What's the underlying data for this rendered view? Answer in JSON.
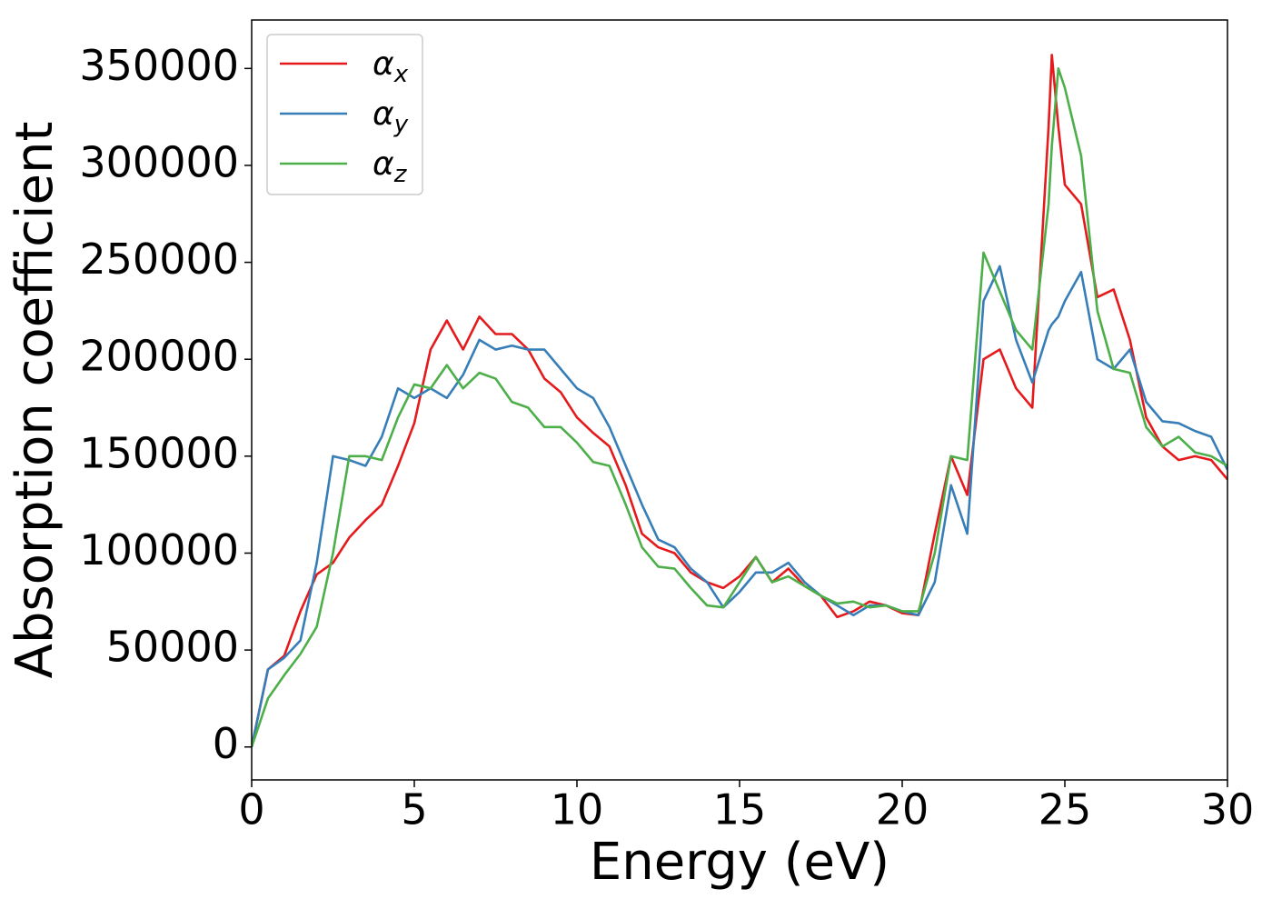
{
  "chart_data": {
    "type": "line",
    "xlabel": "Energy (eV)",
    "ylabel": "Absorption coefficient",
    "x": [
      0,
      0.5,
      1,
      1.5,
      2,
      2.5,
      3,
      3.5,
      4,
      4.5,
      5,
      5.5,
      6,
      6.5,
      7,
      7.5,
      8,
      8.5,
      9,
      9.5,
      10,
      10.5,
      11,
      11.5,
      12,
      12.5,
      13,
      13.5,
      14,
      14.5,
      15,
      15.5,
      16,
      16.5,
      17,
      17.5,
      18,
      18.5,
      19,
      19.5,
      20,
      20.5,
      21,
      21.5,
      22,
      22.5,
      23,
      23.5,
      24,
      24.5,
      24.6,
      24.8,
      25,
      25.5,
      26,
      26.5,
      27,
      27.5,
      28,
      28.5,
      29,
      29.5,
      30
    ],
    "series": [
      {
        "name": "αx",
        "color": "#e41a1c",
        "values": [
          0,
          40000,
          47000,
          70000,
          89000,
          95000,
          108000,
          117000,
          125000,
          145000,
          167000,
          205000,
          220000,
          205000,
          222000,
          213000,
          213000,
          205000,
          190000,
          183000,
          170000,
          162000,
          155000,
          135000,
          110000,
          103000,
          100000,
          90000,
          85000,
          82000,
          88000,
          98000,
          85000,
          92000,
          83000,
          78000,
          67000,
          70000,
          75000,
          73000,
          69000,
          68000,
          110000,
          150000,
          130000,
          200000,
          205000,
          185000,
          175000,
          320000,
          357000,
          320000,
          290000,
          280000,
          232000,
          236000,
          210000,
          170000,
          155000,
          148000,
          150000,
          148000,
          138000
        ]
      },
      {
        "name": "αy",
        "color": "#377eb8",
        "values": [
          0,
          40000,
          46000,
          55000,
          95000,
          150000,
          148000,
          145000,
          160000,
          185000,
          180000,
          185000,
          180000,
          192000,
          210000,
          205000,
          207000,
          205000,
          205000,
          195000,
          185000,
          180000,
          165000,
          145000,
          125000,
          107000,
          103000,
          92000,
          85000,
          72000,
          80000,
          90000,
          90000,
          95000,
          85000,
          78000,
          73000,
          68000,
          73000,
          73000,
          70000,
          68000,
          85000,
          135000,
          110000,
          230000,
          248000,
          210000,
          188000,
          215000,
          218000,
          222000,
          230000,
          245000,
          200000,
          195000,
          205000,
          178000,
          168000,
          167000,
          163000,
          160000,
          143000
        ]
      },
      {
        "name": "αz",
        "color": "#4daf4a",
        "values": [
          0,
          25000,
          37000,
          48000,
          62000,
          100000,
          150000,
          150000,
          148000,
          170000,
          187000,
          185000,
          197000,
          185000,
          193000,
          190000,
          178000,
          175000,
          165000,
          165000,
          157000,
          147000,
          145000,
          125000,
          103000,
          93000,
          92000,
          82000,
          73000,
          72000,
          85000,
          98000,
          85000,
          88000,
          83000,
          78000,
          74000,
          75000,
          72000,
          73000,
          70000,
          70000,
          100000,
          150000,
          148000,
          255000,
          235000,
          215000,
          205000,
          280000,
          310000,
          350000,
          340000,
          305000,
          225000,
          195000,
          193000,
          165000,
          155000,
          160000,
          152000,
          150000,
          145000
        ]
      }
    ],
    "xlim": [
      0,
      30
    ],
    "xticks": [
      0,
      5,
      10,
      15,
      20,
      25,
      30
    ],
    "ylim": [
      -17000,
      375000
    ],
    "yticks": [
      0,
      50000,
      100000,
      150000,
      200000,
      250000,
      300000,
      350000
    ],
    "grid": false,
    "legend": "upper left"
  }
}
